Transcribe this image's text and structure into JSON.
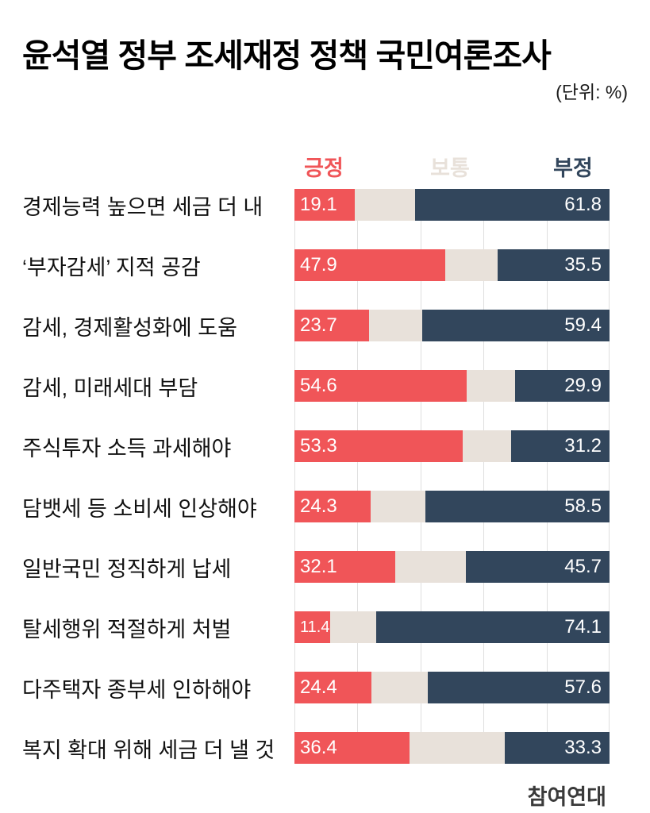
{
  "title": "윤석열 정부 조세재정 정책 국민여론조사",
  "unit_note": "(단위: %)",
  "source": "참여연대",
  "colors": {
    "positive": "#F05558",
    "neutral": "#E8E1DA",
    "negative": "#32465C",
    "grid": "#DFDFDF"
  },
  "chart_data": {
    "type": "bar",
    "orientation": "horizontal",
    "stacked": true,
    "unit": "%",
    "xlim": [
      0,
      100
    ],
    "gridlines_percent": [
      0,
      20,
      40,
      60,
      80,
      100
    ],
    "legend_position": "top",
    "value_labels": "positive and negative segments labeled in white; neutral unlabeled",
    "categories": [
      "경제능력 높으면 세금 더 내",
      "‘부자감세’ 지적 공감",
      "감세, 경제활성화에 도움",
      "감세, 미래세대 부담",
      "주식투자 소득 과세해야",
      "담뱃세 등 소비세 인상해야",
      "일반국민 정직하게 납세",
      "탈세행위 적절하게 처벌",
      "다주택자 종부세 인하해야",
      "복지 확대 위해 세금 더 낼 것"
    ],
    "series": [
      {
        "name": "긍정",
        "color": "#F05558",
        "values": [
          19.1,
          47.9,
          23.7,
          54.6,
          53.3,
          24.3,
          32.1,
          11.4,
          24.4,
          36.4
        ]
      },
      {
        "name": "보통",
        "color": "#E8E1DA",
        "values": [
          19.1,
          16.6,
          16.9,
          15.5,
          15.5,
          17.2,
          22.2,
          14.5,
          18.0,
          30.3
        ]
      },
      {
        "name": "부정",
        "color": "#32465C",
        "values": [
          61.8,
          35.5,
          59.4,
          29.9,
          31.2,
          58.5,
          45.7,
          74.1,
          57.6,
          33.3
        ]
      }
    ]
  }
}
